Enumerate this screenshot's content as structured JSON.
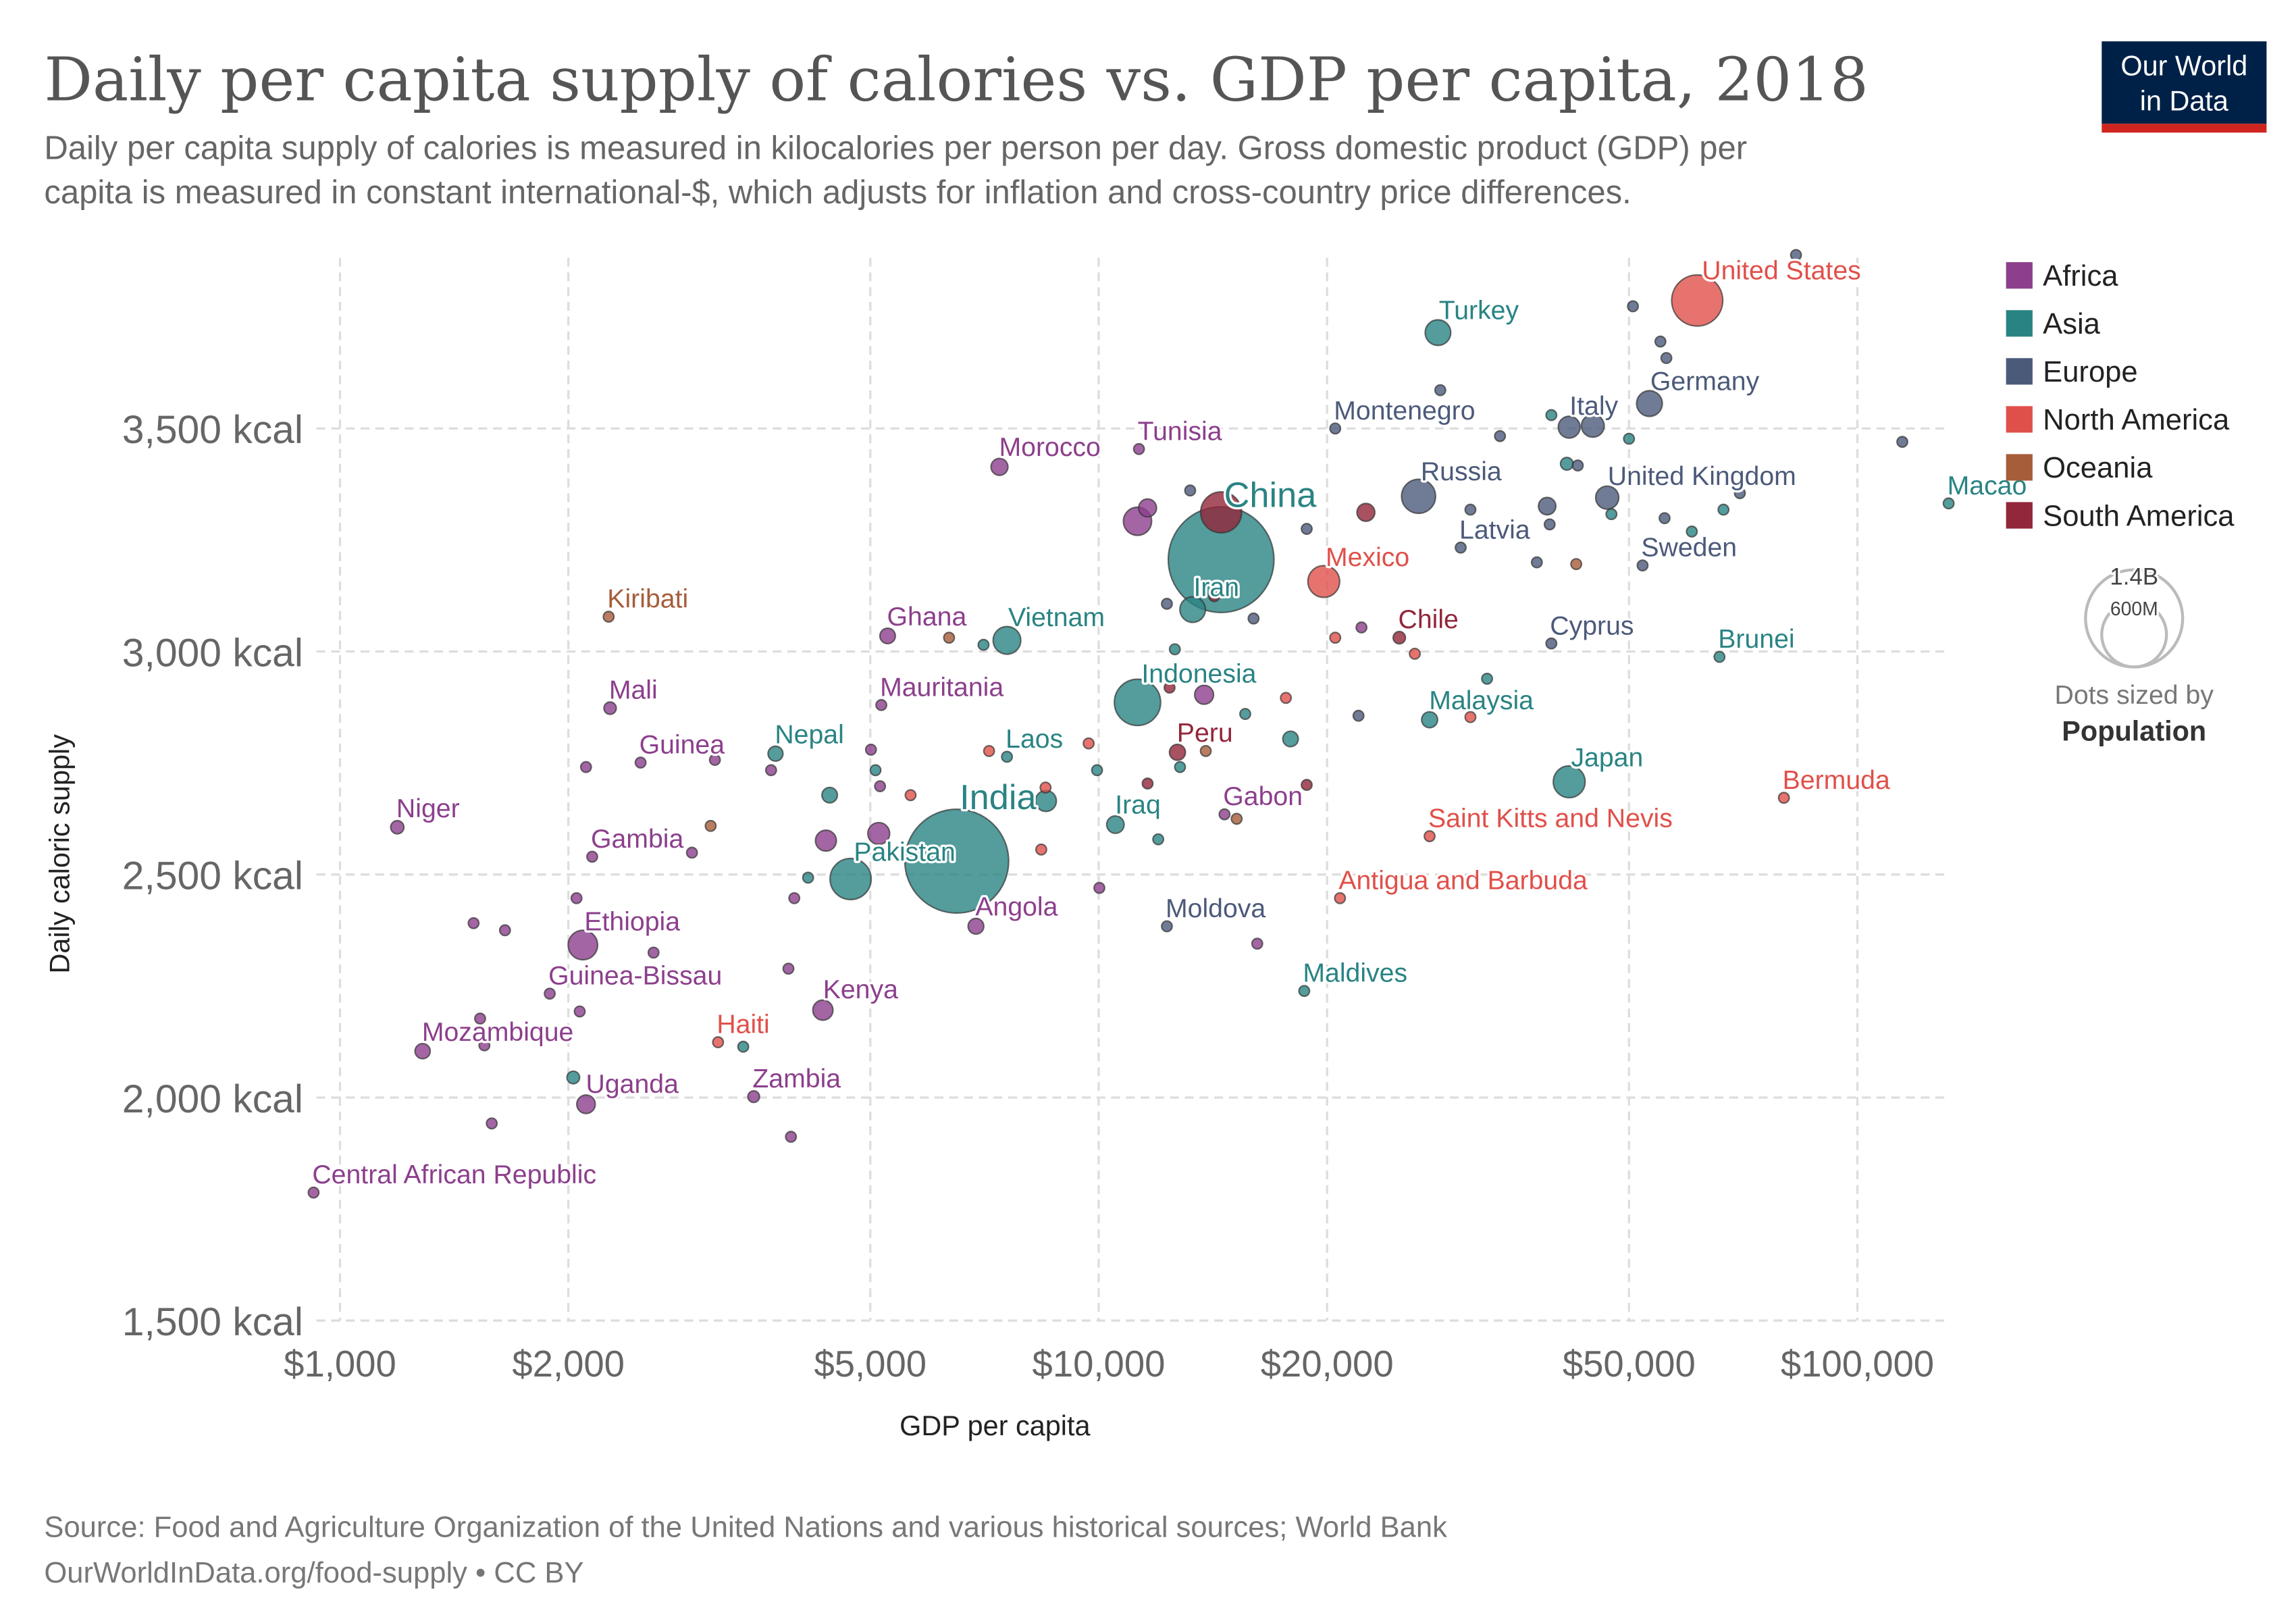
{
  "header": {
    "title": "Daily per capita supply of calories vs. GDP per capita, 2018",
    "subtitle_line1": "Daily per capita supply of calories is measured in kilocalories per person per day. Gross domestic product (GDP) per",
    "subtitle_line2": "capita is measured in constant international-$, which adjusts for inflation and cross-country price differences.",
    "logo_line1": "Our World",
    "logo_line2": "in Data"
  },
  "footer": {
    "source": "Source: Food and Agriculture Organization of the United Nations and various historical sources; World Bank",
    "link": "OurWorldInData.org/food-supply • CC BY"
  },
  "chart_data": {
    "type": "scatter",
    "title": "Daily per capita supply of calories vs. GDP per capita, 2018",
    "xlabel": "GDP per capita",
    "ylabel": "Daily caloric supply",
    "xscale": "log",
    "xlim": [
      850,
      135000
    ],
    "ylim": [
      1500,
      3900
    ],
    "xticks": [
      1000,
      2000,
      5000,
      10000,
      20000,
      50000,
      100000
    ],
    "xtick_labels": [
      "$1,000",
      "$2,000",
      "$5,000",
      "$10,000",
      "$20,000",
      "$50,000",
      "$100,000"
    ],
    "yticks": [
      1500,
      2000,
      2500,
      3000,
      3500
    ],
    "ytick_labels": [
      "1,500 kcal",
      "2,000 kcal",
      "2,500 kcal",
      "3,000 kcal",
      "3,500 kcal"
    ],
    "grid": true,
    "legend_position": "right",
    "regions": [
      {
        "name": "Africa",
        "color": "#8c3f8c"
      },
      {
        "name": "Asia",
        "color": "#2a8383"
      },
      {
        "name": "Europe",
        "color": "#4c5a7a"
      },
      {
        "name": "North America",
        "color": "#e0504a"
      },
      {
        "name": "Oceania",
        "color": "#a65d3a"
      },
      {
        "name": "South America",
        "color": "#92263a"
      }
    ],
    "size_legend": {
      "title": "Dots sized by",
      "variable": "Population",
      "values": [
        1400,
        600
      ],
      "labels": [
        "1.4B",
        "600M"
      ]
    },
    "points": [
      {
        "label": "China",
        "region": "Asia",
        "gdp": 14500,
        "kcal": 3206,
        "pop": 1400
      },
      {
        "label": "India",
        "region": "Asia",
        "gdp": 6500,
        "kcal": 2530,
        "pop": 1350
      },
      {
        "label": "United States",
        "region": "North America",
        "gdp": 61500,
        "kcal": 3787,
        "pop": 327
      },
      {
        "label": "Indonesia",
        "region": "Asia",
        "gdp": 11250,
        "kcal": 2886,
        "pop": 268
      },
      {
        "label": "Pakistan",
        "region": "Asia",
        "gdp": 4710,
        "kcal": 2490,
        "pop": 212
      },
      {
        "label": "Russia",
        "region": "Europe",
        "gdp": 26400,
        "kcal": 3348,
        "pop": 145
      },
      {
        "label": "Mexico",
        "region": "North America",
        "gdp": 19800,
        "kcal": 3157,
        "pop": 126
      },
      {
        "label": "Japan",
        "region": "Asia",
        "gdp": 41700,
        "kcal": 2708,
        "pop": 127
      },
      {
        "label": "Ethiopia",
        "region": "Africa",
        "gdp": 2090,
        "kcal": 2342,
        "pop": 109
      },
      {
        "label": "Vietnam",
        "region": "Asia",
        "gdp": 7570,
        "kcal": 3025,
        "pop": 96
      },
      {
        "label": "Turkey",
        "region": "Asia",
        "gdp": 28000,
        "kcal": 3715,
        "pop": 82
      },
      {
        "label": "Iran",
        "region": "Asia",
        "gdp": 13300,
        "kcal": 3094,
        "pop": 82
      },
      {
        "label": "Germany",
        "region": "Europe",
        "gdp": 53200,
        "kcal": 3556,
        "pop": 83
      },
      {
        "label": "United Kingdom",
        "region": "Europe",
        "gdp": 46800,
        "kcal": 3345,
        "pop": 67
      },
      {
        "label": "Italy",
        "region": "Europe",
        "gdp": 41700,
        "kcal": 3503,
        "pop": 60
      },
      {
        "label": "Kenya",
        "region": "Africa",
        "gdp": 4330,
        "kcal": 2196,
        "pop": 51
      },
      {
        "label": "Iraq",
        "region": "Asia",
        "gdp": 10520,
        "kcal": 2612,
        "pop": 38
      },
      {
        "label": "Uganda",
        "region": "Africa",
        "gdp": 2110,
        "kcal": 1985,
        "pop": 43
      },
      {
        "label": "Morocco",
        "region": "Africa",
        "gdp": 7400,
        "kcal": 3414,
        "pop": 36
      },
      {
        "label": "Angola",
        "region": "Africa",
        "gdp": 6890,
        "kcal": 2384,
        "pop": 31
      },
      {
        "label": "Malaysia",
        "region": "Asia",
        "gdp": 27300,
        "kcal": 2847,
        "pop": 32
      },
      {
        "label": "Peru",
        "region": "South America",
        "gdp": 12700,
        "kcal": 2774,
        "pop": 32
      },
      {
        "label": "Ghana",
        "region": "Africa",
        "gdp": 5270,
        "kcal": 3035,
        "pop": 30
      },
      {
        "label": "Mozambique",
        "region": "Africa",
        "gdp": 1285,
        "kcal": 2104,
        "pop": 29
      },
      {
        "label": "Nepal",
        "region": "Asia",
        "gdp": 3750,
        "kcal": 2771,
        "pop": 28
      },
      {
        "label": "Niger",
        "region": "Africa",
        "gdp": 1190,
        "kcal": 2606,
        "pop": 22
      },
      {
        "label": "Mali",
        "region": "Africa",
        "gdp": 2270,
        "kcal": 2873,
        "pop": 19
      },
      {
        "label": "Chile",
        "region": "South America",
        "gdp": 24900,
        "kcal": 3031,
        "pop": 19
      },
      {
        "label": "Zambia",
        "region": "Africa",
        "gdp": 3510,
        "kcal": 2002,
        "pop": 17
      },
      {
        "label": "Guinea",
        "region": "Africa",
        "gdp": 2490,
        "kcal": 2751,
        "pop": 12
      },
      {
        "label": "Tunisia",
        "region": "Africa",
        "gdp": 11300,
        "kcal": 3454,
        "pop": 12
      },
      {
        "label": "Haiti",
        "region": "North America",
        "gdp": 3150,
        "kcal": 2124,
        "pop": 11
      },
      {
        "label": "Sweden",
        "region": "Europe",
        "gdp": 52100,
        "kcal": 3193,
        "pop": 10
      },
      {
        "label": "Laos",
        "region": "Asia",
        "gdp": 7570,
        "kcal": 2764,
        "pop": 7
      },
      {
        "label": "Central African Republic",
        "region": "Africa",
        "gdp": 923,
        "kcal": 1787,
        "pop": 5
      },
      {
        "label": "Mauritania",
        "region": "Africa",
        "gdp": 5170,
        "kcal": 2880,
        "pop": 4.4
      },
      {
        "label": "Moldova",
        "region": "Europe",
        "gdp": 12300,
        "kcal": 2384,
        "pop": 3.5
      },
      {
        "label": "Gabon",
        "region": "Africa",
        "gdp": 14650,
        "kcal": 2635,
        "pop": 2.1
      },
      {
        "label": "Gambia",
        "region": "Africa",
        "gdp": 2150,
        "kcal": 2540,
        "pop": 2.3
      },
      {
        "label": "Guinea-Bissau",
        "region": "Africa",
        "gdp": 1890,
        "kcal": 2233,
        "pop": 1.9
      },
      {
        "label": "Latvia",
        "region": "Europe",
        "gdp": 30000,
        "kcal": 3233,
        "pop": 1.9
      },
      {
        "label": "Cyprus",
        "region": "Europe",
        "gdp": 39500,
        "kcal": 3018,
        "pop": 1.2
      },
      {
        "label": "Montenegro",
        "region": "Europe",
        "gdp": 20500,
        "kcal": 3500,
        "pop": 0.6
      },
      {
        "label": "Macao",
        "region": "Asia",
        "gdp": 131900,
        "kcal": 3332,
        "pop": 0.6
      },
      {
        "label": "Brunei",
        "region": "Asia",
        "gdp": 65800,
        "kcal": 2988,
        "pop": 0.4
      },
      {
        "label": "Maldives",
        "region": "Asia",
        "gdp": 18660,
        "kcal": 2239,
        "pop": 0.5
      },
      {
        "label": "Kiribati",
        "region": "Oceania",
        "gdp": 2260,
        "kcal": 3078,
        "pop": 0.1
      },
      {
        "label": "Bermuda",
        "region": "North America",
        "gdp": 80000,
        "kcal": 2672,
        "pop": 0.06
      },
      {
        "label": "Saint Kitts and Nevis",
        "region": "North America",
        "gdp": 27300,
        "kcal": 2586,
        "pop": 0.05
      },
      {
        "label": "Antigua and Barbuda",
        "region": "North America",
        "gdp": 20800,
        "kcal": 2447,
        "pop": 0.1
      },
      {
        "label": "",
        "region": "Africa",
        "gdp": 1500,
        "kcal": 2391,
        "pop": 8
      },
      {
        "label": "",
        "region": "Africa",
        "gdp": 1650,
        "kcal": 2375,
        "pop": 8
      },
      {
        "label": "",
        "region": "Africa",
        "gdp": 1550,
        "kcal": 2117,
        "pop": 8
      },
      {
        "label": "",
        "region": "Africa",
        "gdp": 1530,
        "kcal": 2177,
        "pop": 8
      },
      {
        "label": "",
        "region": "Africa",
        "gdp": 1585,
        "kcal": 1942,
        "pop": 14
      },
      {
        "label": "",
        "region": "Africa",
        "gdp": 2050,
        "kcal": 2447,
        "pop": 8
      },
      {
        "label": "",
        "region": "Africa",
        "gdp": 2110,
        "kcal": 2741,
        "pop": 8
      },
      {
        "label": "",
        "region": "Africa",
        "gdp": 2070,
        "kcal": 2193,
        "pop": 8
      },
      {
        "label": "",
        "region": "Africa",
        "gdp": 2590,
        "kcal": 2325,
        "pop": 8
      },
      {
        "label": "",
        "region": "Africa",
        "gdp": 3930,
        "kcal": 1912,
        "pop": 8
      },
      {
        "label": "",
        "region": "Africa",
        "gdp": 3970,
        "kcal": 2447,
        "pop": 8
      },
      {
        "label": "",
        "region": "Africa",
        "gdp": 3900,
        "kcal": 2289,
        "pop": 8
      },
      {
        "label": "",
        "region": "Africa",
        "gdp": 5010,
        "kcal": 2780,
        "pop": 8
      },
      {
        "label": "",
        "region": "Africa",
        "gdp": 5150,
        "kcal": 2698,
        "pop": 6
      },
      {
        "label": "",
        "region": "Africa",
        "gdp": 5130,
        "kcal": 2592,
        "pop": 60
      },
      {
        "label": "",
        "region": "Africa",
        "gdp": 10020,
        "kcal": 2470,
        "pop": 8
      },
      {
        "label": "",
        "region": "Africa",
        "gdp": 16180,
        "kcal": 2345,
        "pop": 8
      },
      {
        "label": "",
        "region": "Africa",
        "gdp": 3700,
        "kcal": 2734,
        "pop": 8
      },
      {
        "label": "",
        "region": "Africa",
        "gdp": 2910,
        "kcal": 2549,
        "pop": 8
      },
      {
        "label": "",
        "region": "Africa",
        "gdp": 3120,
        "kcal": 2757,
        "pop": 6
      },
      {
        "label": "",
        "region": "Africa",
        "gdp": 11600,
        "kcal": 3322,
        "pop": 40
      },
      {
        "label": "",
        "region": "Africa",
        "gdp": 11250,
        "kcal": 3292,
        "pop": 100
      },
      {
        "label": "",
        "region": "Africa",
        "gdp": 13770,
        "kcal": 2903,
        "pop": 45
      },
      {
        "label": "",
        "region": "Africa",
        "gdp": 22200,
        "kcal": 3054,
        "pop": 6
      },
      {
        "label": "",
        "region": "Africa",
        "gdp": 4370,
        "kcal": 2576,
        "pop": 55
      },
      {
        "label": "",
        "region": "Asia",
        "gdp": 2030,
        "kcal": 2045,
        "pop": 20
      },
      {
        "label": "",
        "region": "Asia",
        "gdp": 3400,
        "kcal": 2114,
        "pop": 8
      },
      {
        "label": "",
        "region": "Asia",
        "gdp": 4140,
        "kcal": 2493,
        "pop": 6
      },
      {
        "label": "",
        "region": "Asia",
        "gdp": 4420,
        "kcal": 2678,
        "pop": 30
      },
      {
        "label": "",
        "region": "Asia",
        "gdp": 5080,
        "kcal": 2734,
        "pop": 6
      },
      {
        "label": "",
        "region": "Asia",
        "gdp": 7050,
        "kcal": 3015,
        "pop": 9
      },
      {
        "label": "",
        "region": "Asia",
        "gdp": 8520,
        "kcal": 2665,
        "pop": 55
      },
      {
        "label": "",
        "region": "Asia",
        "gdp": 9950,
        "kcal": 2734,
        "pop": 6
      },
      {
        "label": "",
        "region": "Asia",
        "gdp": 11980,
        "kcal": 2579,
        "pop": 8
      },
      {
        "label": "",
        "region": "Asia",
        "gdp": 12800,
        "kcal": 2741,
        "pop": 6
      },
      {
        "label": "",
        "region": "Asia",
        "gdp": 12600,
        "kcal": 3005,
        "pop": 5
      },
      {
        "label": "",
        "region": "Asia",
        "gdp": 15600,
        "kcal": 2860,
        "pop": 6
      },
      {
        "label": "",
        "region": "Asia",
        "gdp": 17900,
        "kcal": 2804,
        "pop": 30
      },
      {
        "label": "",
        "region": "Asia",
        "gdp": 39500,
        "kcal": 3530,
        "pop": 5
      },
      {
        "label": "",
        "region": "Asia",
        "gdp": 41400,
        "kcal": 3421,
        "pop": 20
      },
      {
        "label": "",
        "region": "Asia",
        "gdp": 47400,
        "kcal": 3308,
        "pop": 8
      },
      {
        "label": "",
        "region": "Asia",
        "gdp": 50000,
        "kcal": 3477,
        "pop": 5
      },
      {
        "label": "",
        "region": "Asia",
        "gdp": 60500,
        "kcal": 3269,
        "pop": 6
      },
      {
        "label": "",
        "region": "Asia",
        "gdp": 66600,
        "kcal": 3318,
        "pop": 5
      },
      {
        "label": "",
        "region": "Asia",
        "gdp": 32500,
        "kcal": 2939,
        "pop": 5
      },
      {
        "label": "",
        "region": "Europe",
        "gdp": 83000,
        "kcal": 3889,
        "pop": 5
      },
      {
        "label": "",
        "region": "Europe",
        "gdp": 50600,
        "kcal": 3774,
        "pop": 6
      },
      {
        "label": "",
        "region": "Europe",
        "gdp": 55000,
        "kcal": 3695,
        "pop": 6
      },
      {
        "label": "",
        "region": "Europe",
        "gdp": 56000,
        "kcal": 3658,
        "pop": 5
      },
      {
        "label": "",
        "region": "Europe",
        "gdp": 28200,
        "kcal": 3586,
        "pop": 5
      },
      {
        "label": "",
        "region": "Europe",
        "gdp": 33800,
        "kcal": 3483,
        "pop": 6
      },
      {
        "label": "",
        "region": "Europe",
        "gdp": 39300,
        "kcal": 3285,
        "pop": 5
      },
      {
        "label": "",
        "region": "Europe",
        "gdp": 42800,
        "kcal": 3417,
        "pop": 6
      },
      {
        "label": "",
        "region": "Europe",
        "gdp": 44800,
        "kcal": 3506,
        "pop": 65
      },
      {
        "label": "",
        "region": "Europe",
        "gdp": 55700,
        "kcal": 3299,
        "pop": 6
      },
      {
        "label": "",
        "region": "Europe",
        "gdp": 70000,
        "kcal": 3355,
        "pop": 6
      },
      {
        "label": "",
        "region": "Europe",
        "gdp": 114600,
        "kcal": 3470,
        "pop": 5
      },
      {
        "label": "",
        "region": "Europe",
        "gdp": 37800,
        "kcal": 3200,
        "pop": 6
      },
      {
        "label": "",
        "region": "Europe",
        "gdp": 30900,
        "kcal": 3318,
        "pop": 6
      },
      {
        "label": "",
        "region": "Europe",
        "gdp": 18800,
        "kcal": 3275,
        "pop": 6
      },
      {
        "label": "",
        "region": "Europe",
        "gdp": 16000,
        "kcal": 3074,
        "pop": 5
      },
      {
        "label": "",
        "region": "Europe",
        "gdp": 13200,
        "kcal": 3361,
        "pop": 5
      },
      {
        "label": "",
        "region": "Europe",
        "gdp": 12300,
        "kcal": 3107,
        "pop": 10
      },
      {
        "label": "",
        "region": "Europe",
        "gdp": 22000,
        "kcal": 2856,
        "pop": 5
      },
      {
        "label": "",
        "region": "Europe",
        "gdp": 39000,
        "kcal": 3326,
        "pop": 38
      },
      {
        "label": "",
        "region": "North America",
        "gdp": 7170,
        "kcal": 2777,
        "pop": 4
      },
      {
        "label": "",
        "region": "North America",
        "gdp": 8510,
        "kcal": 2695,
        "pop": 4
      },
      {
        "label": "",
        "region": "North America",
        "gdp": 8400,
        "kcal": 2556,
        "pop": 4
      },
      {
        "label": "",
        "region": "North America",
        "gdp": 9700,
        "kcal": 2794,
        "pop": 4
      },
      {
        "label": "",
        "region": "North America",
        "gdp": 17650,
        "kcal": 2896,
        "pop": 4
      },
      {
        "label": "",
        "region": "North America",
        "gdp": 20500,
        "kcal": 3031,
        "pop": 4
      },
      {
        "label": "",
        "region": "North America",
        "gdp": 26100,
        "kcal": 2995,
        "pop": 4
      },
      {
        "label": "",
        "region": "North America",
        "gdp": 30900,
        "kcal": 2853,
        "pop": 4
      },
      {
        "label": "",
        "region": "North America",
        "gdp": 5650,
        "kcal": 2678,
        "pop": 4
      },
      {
        "label": "",
        "region": "South America",
        "gdp": 22500,
        "kcal": 3312,
        "pop": 40
      },
      {
        "label": "",
        "region": "South America",
        "gdp": 14200,
        "kcal": 3124,
        "pop": 8
      },
      {
        "label": "",
        "region": "South America",
        "gdp": 12400,
        "kcal": 2919,
        "pop": 6
      },
      {
        "label": "",
        "region": "South America",
        "gdp": 11600,
        "kcal": 2704,
        "pop": 6
      },
      {
        "label": "",
        "region": "South America",
        "gdp": 18800,
        "kcal": 2701,
        "pop": 5
      },
      {
        "label": "",
        "region": "South America",
        "gdp": 14500,
        "kcal": 3312,
        "pop": 210
      },
      {
        "label": "",
        "region": "Oceania",
        "gdp": 3080,
        "kcal": 2609,
        "pop": 8
      },
      {
        "label": "",
        "region": "Oceania",
        "gdp": 6350,
        "kcal": 3031,
        "pop": 4
      },
      {
        "label": "",
        "region": "Oceania",
        "gdp": 42600,
        "kcal": 3196,
        "pop": 6
      },
      {
        "label": "",
        "region": "Oceania",
        "gdp": 13840,
        "kcal": 2777,
        "pop": 4
      },
      {
        "label": "",
        "region": "Oceania",
        "gdp": 15200,
        "kcal": 2625,
        "pop": 4
      }
    ]
  }
}
